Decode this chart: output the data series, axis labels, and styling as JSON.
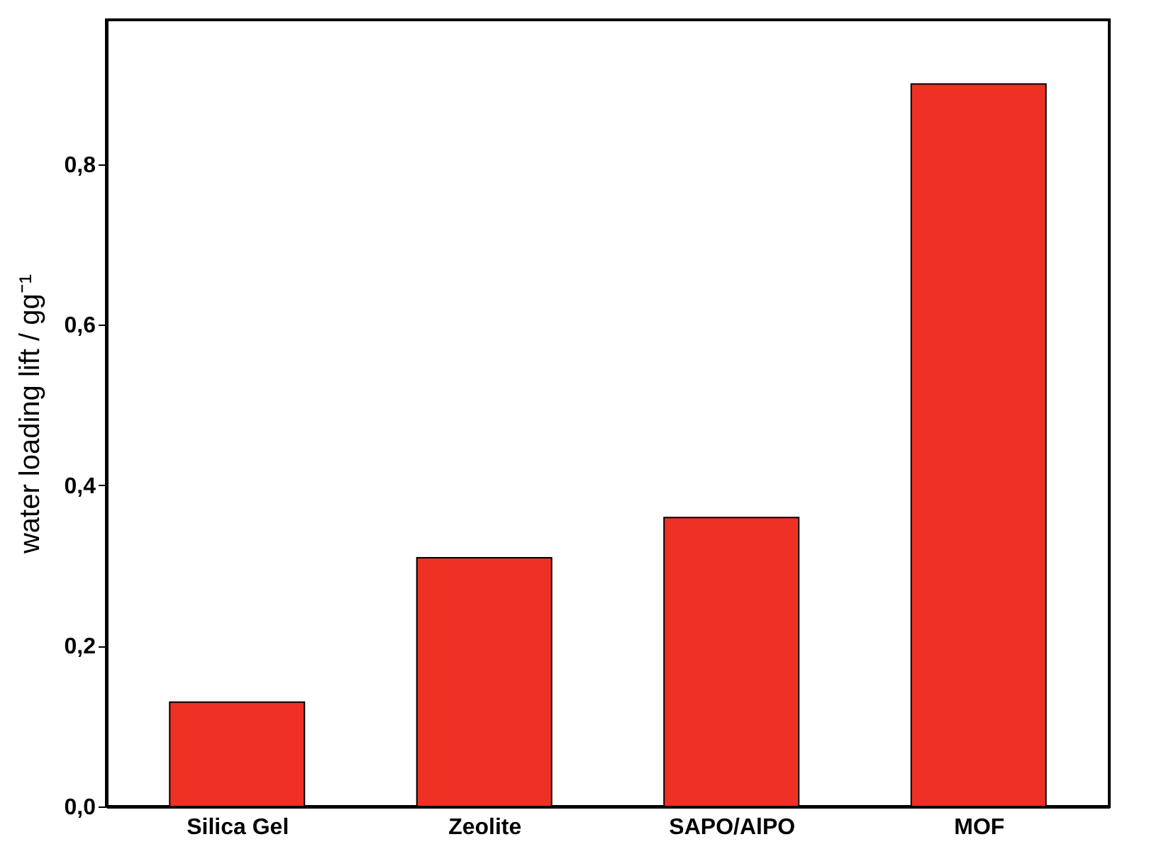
{
  "chart_data": {
    "type": "bar",
    "ylabel": "water loading lift / gg⁻¹",
    "categories": [
      "Silica Gel",
      "Zeolite",
      "SAPO/AlPO",
      "MOF"
    ],
    "values": [
      0.13,
      0.31,
      0.36,
      0.9
    ],
    "color": "#ee3124",
    "ylim": [
      0,
      0.98
    ],
    "yticks": [
      {
        "value": 0,
        "label": "0,0"
      },
      {
        "value": 0.2,
        "label": "0,2"
      },
      {
        "value": 0.4,
        "label": "0,4"
      },
      {
        "value": 0.6,
        "label": "0,6"
      },
      {
        "value": 0.8,
        "label": "0,8"
      }
    ],
    "grid": false
  }
}
